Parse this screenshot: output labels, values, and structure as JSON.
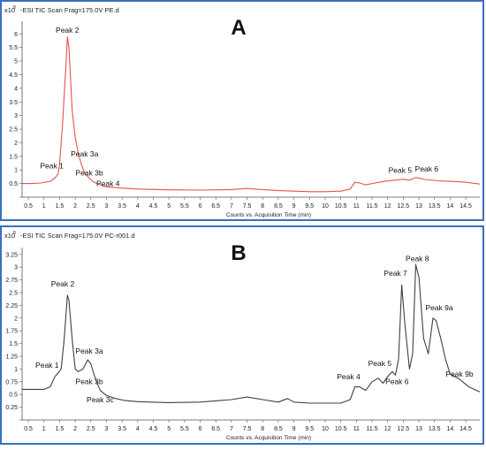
{
  "chart_data": [
    {
      "type": "line",
      "panel_letter": "A",
      "header": "-ESI TIC Scan Frag=175.0V PE.d",
      "y_exponent_label": "x10",
      "y_exponent": "8",
      "xlabel": "Counts vs. Acquisition Time (min)",
      "xlim": [
        0.3,
        14.95
      ],
      "ylim": [
        0,
        6.4
      ],
      "x_ticks": [
        0.5,
        1,
        1.5,
        2,
        2.5,
        3,
        3.5,
        4,
        4.5,
        5,
        5.5,
        6,
        6.5,
        7,
        7.5,
        8,
        8.5,
        9,
        9.5,
        10,
        10.5,
        11,
        11.5,
        12,
        12.5,
        13,
        13.5,
        14,
        14.5
      ],
      "y_ticks": [
        0,
        0.5,
        1,
        1.5,
        2,
        2.5,
        3,
        3.5,
        4,
        4.5,
        5,
        5.5,
        6
      ],
      "y_tick_labels": [
        "",
        "0.5",
        "1",
        "1.5",
        "2",
        "2.5",
        "3",
        "3.5",
        "4",
        "4.5",
        "5",
        "5.5",
        "6"
      ],
      "line_color": "#e8504f",
      "series": [
        {
          "x": [
            0.3,
            0.6,
            0.9,
            1.2,
            1.35,
            1.45,
            1.5,
            1.6,
            1.7,
            1.75,
            1.8,
            1.85,
            1.9,
            2.0,
            2.1,
            2.2,
            2.3,
            2.45,
            2.6,
            2.8,
            3.0,
            3.5,
            4.0,
            5.0,
            6.0,
            7.0,
            7.5,
            8.0,
            8.5,
            9.0,
            9.5,
            10.0,
            10.5,
            10.8,
            10.95,
            11.1,
            11.3,
            11.6,
            11.9,
            12.2,
            12.5,
            12.7,
            12.9,
            13.2,
            13.6,
            14.0,
            14.5,
            14.95
          ],
          "y": [
            0.5,
            0.5,
            0.52,
            0.58,
            0.7,
            0.85,
            1.2,
            2.8,
            4.8,
            5.9,
            5.5,
            4.4,
            3.2,
            2.2,
            1.6,
            1.2,
            0.9,
            0.7,
            0.55,
            0.45,
            0.38,
            0.33,
            0.3,
            0.27,
            0.26,
            0.28,
            0.32,
            0.28,
            0.24,
            0.22,
            0.2,
            0.2,
            0.22,
            0.3,
            0.55,
            0.52,
            0.45,
            0.52,
            0.58,
            0.62,
            0.66,
            0.62,
            0.72,
            0.65,
            0.6,
            0.58,
            0.55,
            0.48
          ]
        }
      ],
      "annotations": [
        {
          "text": "Peak 2",
          "x": 1.75,
          "y": 6.05
        },
        {
          "text": "Peak 1",
          "x": 1.25,
          "y": 1.05
        },
        {
          "text": "Peak 3a",
          "x": 2.3,
          "y": 1.5
        },
        {
          "text": "Peak 3b",
          "x": 2.45,
          "y": 0.8
        },
        {
          "text": "Peak 4",
          "x": 3.05,
          "y": 0.4
        },
        {
          "text": "Peak 5",
          "x": 12.4,
          "y": 0.9
        },
        {
          "text": "Peak 6",
          "x": 13.25,
          "y": 0.95
        }
      ]
    },
    {
      "type": "line",
      "panel_letter": "B",
      "header": "-ESI TIC Scan Frag=175.0V PC-r001.d",
      "y_exponent_label": "x10",
      "y_exponent": "8",
      "xlabel": "Counts vs. Acquisition Time (min)",
      "xlim": [
        0.3,
        14.95
      ],
      "ylim": [
        0,
        3.35
      ],
      "x_ticks": [
        0.5,
        1,
        1.5,
        2,
        2.5,
        3,
        3.5,
        4,
        4.5,
        5,
        5.5,
        6,
        6.5,
        7,
        7.5,
        8,
        8.5,
        9,
        9.5,
        10,
        10.5,
        11,
        11.5,
        12,
        12.5,
        13,
        13.5,
        14,
        14.5
      ],
      "y_ticks": [
        0,
        0.25,
        0.5,
        0.75,
        1,
        1.25,
        1.5,
        1.75,
        2,
        2.25,
        2.5,
        2.75,
        3,
        3.25
      ],
      "y_tick_labels": [
        "",
        "0.25",
        "0.5",
        "0.75",
        "1",
        "1.25",
        "1.5",
        "1.75",
        "2",
        "2.25",
        "2.5",
        "2.75",
        "3",
        "3.25"
      ],
      "line_color": "#404040",
      "series": [
        {
          "x": [
            0.3,
            0.7,
            1.0,
            1.2,
            1.35,
            1.45,
            1.55,
            1.65,
            1.75,
            1.8,
            1.9,
            2.0,
            2.1,
            2.25,
            2.4,
            2.5,
            2.65,
            2.8,
            3.0,
            3.3,
            3.6,
            4.0,
            5.0,
            6.0,
            7.0,
            7.5,
            8.0,
            8.5,
            8.8,
            9.0,
            9.5,
            10.0,
            10.5,
            10.8,
            10.95,
            11.1,
            11.3,
            11.5,
            11.7,
            11.85,
            12.0,
            12.15,
            12.25,
            12.35,
            12.45,
            12.55,
            12.7,
            12.8,
            12.9,
            13.0,
            13.15,
            13.3,
            13.45,
            13.55,
            13.7,
            13.85,
            14.0,
            14.3,
            14.6,
            14.95
          ],
          "y": [
            0.6,
            0.6,
            0.6,
            0.65,
            0.85,
            0.92,
            1.0,
            1.6,
            2.45,
            2.35,
            1.6,
            1.0,
            0.95,
            1.0,
            1.18,
            1.1,
            0.8,
            0.58,
            0.48,
            0.42,
            0.38,
            0.36,
            0.34,
            0.35,
            0.4,
            0.45,
            0.4,
            0.35,
            0.42,
            0.35,
            0.33,
            0.33,
            0.33,
            0.4,
            0.65,
            0.65,
            0.58,
            0.75,
            0.82,
            0.72,
            0.85,
            0.95,
            0.88,
            1.2,
            2.65,
            1.9,
            1.0,
            1.3,
            3.05,
            2.8,
            1.6,
            1.3,
            2.0,
            1.95,
            1.6,
            1.2,
            0.9,
            0.8,
            0.65,
            0.55
          ]
        }
      ],
      "annotations": [
        {
          "text": "Peak 2",
          "x": 1.6,
          "y": 2.62
        },
        {
          "text": "Peak 1",
          "x": 1.1,
          "y": 1.02
        },
        {
          "text": "Peak 3a",
          "x": 2.45,
          "y": 1.3
        },
        {
          "text": "Peak 3b",
          "x": 2.45,
          "y": 0.7
        },
        {
          "text": "Peak 3c",
          "x": 2.8,
          "y": 0.35
        },
        {
          "text": "Peak 4",
          "x": 10.75,
          "y": 0.8
        },
        {
          "text": "Peak 5",
          "x": 11.75,
          "y": 1.06
        },
        {
          "text": "Peak 6",
          "x": 12.3,
          "y": 0.7
        },
        {
          "text": "Peak 7",
          "x": 12.25,
          "y": 2.83
        },
        {
          "text": "Peak 8",
          "x": 12.95,
          "y": 3.12
        },
        {
          "text": "Peak 9a",
          "x": 13.65,
          "y": 2.15
        },
        {
          "text": "Peak 9b",
          "x": 14.3,
          "y": 0.85
        }
      ]
    }
  ]
}
